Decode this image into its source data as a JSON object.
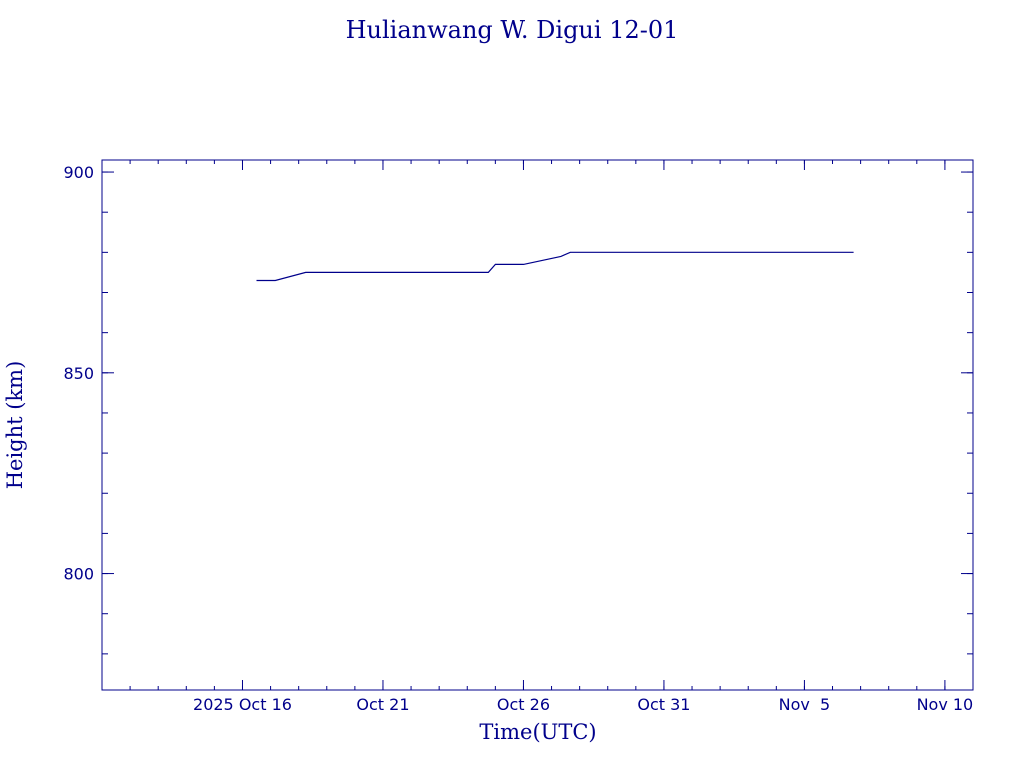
{
  "chart_data": {
    "type": "line",
    "title": "Hulianwang W. Digui 12-01",
    "xlabel": "Time(UTC)",
    "ylabel": "Height (km)",
    "x_tick_labels": [
      "2025 Oct 16",
      "Oct 21",
      "Oct 26",
      "Oct 31",
      "Nov  5",
      "Nov 10"
    ],
    "x_ticks": [
      "2025-10-16",
      "2025-10-21",
      "2025-10-26",
      "2025-10-31",
      "2025-11-05",
      "2025-11-10"
    ],
    "y_tick_labels": [
      "800",
      "850",
      "900"
    ],
    "y_ticks": [
      800,
      850,
      900
    ],
    "xlim": [
      "2025-10-11",
      "2025-11-11"
    ],
    "ylim": [
      771,
      903
    ],
    "grid": false,
    "series": [
      {
        "x": [
          "2025-10-16T12:00",
          "2025-10-17T04:00",
          "2025-10-18T06:00",
          "2025-10-24T18:00",
          "2025-10-25T00:00",
          "2025-10-26T00:00",
          "2025-10-27T08:00",
          "2025-10-27T16:00",
          "2025-11-05T04:00",
          "2025-11-06T18:00"
        ],
        "values": [
          873,
          873,
          875,
          875,
          877,
          877,
          879,
          880,
          880,
          880
        ]
      }
    ],
    "colors": {
      "axes": "#00008b",
      "text": "#00008b",
      "line": "#00008b",
      "background": "#ffffff"
    }
  }
}
